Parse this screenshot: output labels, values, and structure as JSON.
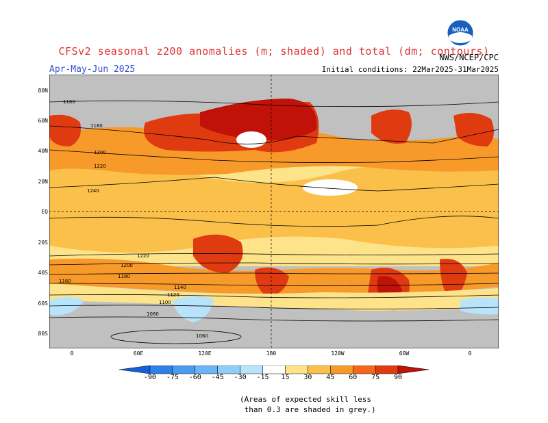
{
  "title": "CFSv2 seasonal z200 anomalies (m; shaded) and total (dm; contours)",
  "season": "Apr-May-Jun 2025",
  "organization": "NWS/NCEP/CPC",
  "initial_conditions": "Initial conditions: 22Mar2025-31Mar2025",
  "logo_text": "NOAA",
  "lat_labels": [
    "80N",
    "60N",
    "40N",
    "20N",
    "EQ",
    "20S",
    "40S",
    "60S",
    "80S"
  ],
  "lon_labels": [
    "0",
    "60E",
    "120E",
    "180",
    "120W",
    "60W",
    "0"
  ],
  "contour_labels": [
    "1160",
    "1180",
    "1200",
    "1220",
    "1240",
    "1220",
    "1200",
    "1180",
    "1160",
    "1140",
    "1120",
    "1100",
    "1080",
    "1060"
  ],
  "colorbar": {
    "ticks": [
      "-90",
      "-75",
      "-60",
      "-45",
      "-30",
      "-15",
      "15",
      "30",
      "45",
      "60",
      "75",
      "90"
    ],
    "colors": [
      "#1560d8",
      "#2f80e8",
      "#4a9cf0",
      "#6ab6f6",
      "#90cdf8",
      "#b8e4fb",
      "#ffffff",
      "#fde38a",
      "#fbc04a",
      "#f89a2a",
      "#f2691c",
      "#e03a10",
      "#c01208"
    ]
  },
  "skill_note": {
    "line1": "(Areas of expected skill less",
    "line2": " than 0.3 are shaded in grey.)"
  },
  "colors": {
    "skill_grey": "#c0c0c0",
    "title_red": "#e03030",
    "season_blue": "#3050d0"
  }
}
